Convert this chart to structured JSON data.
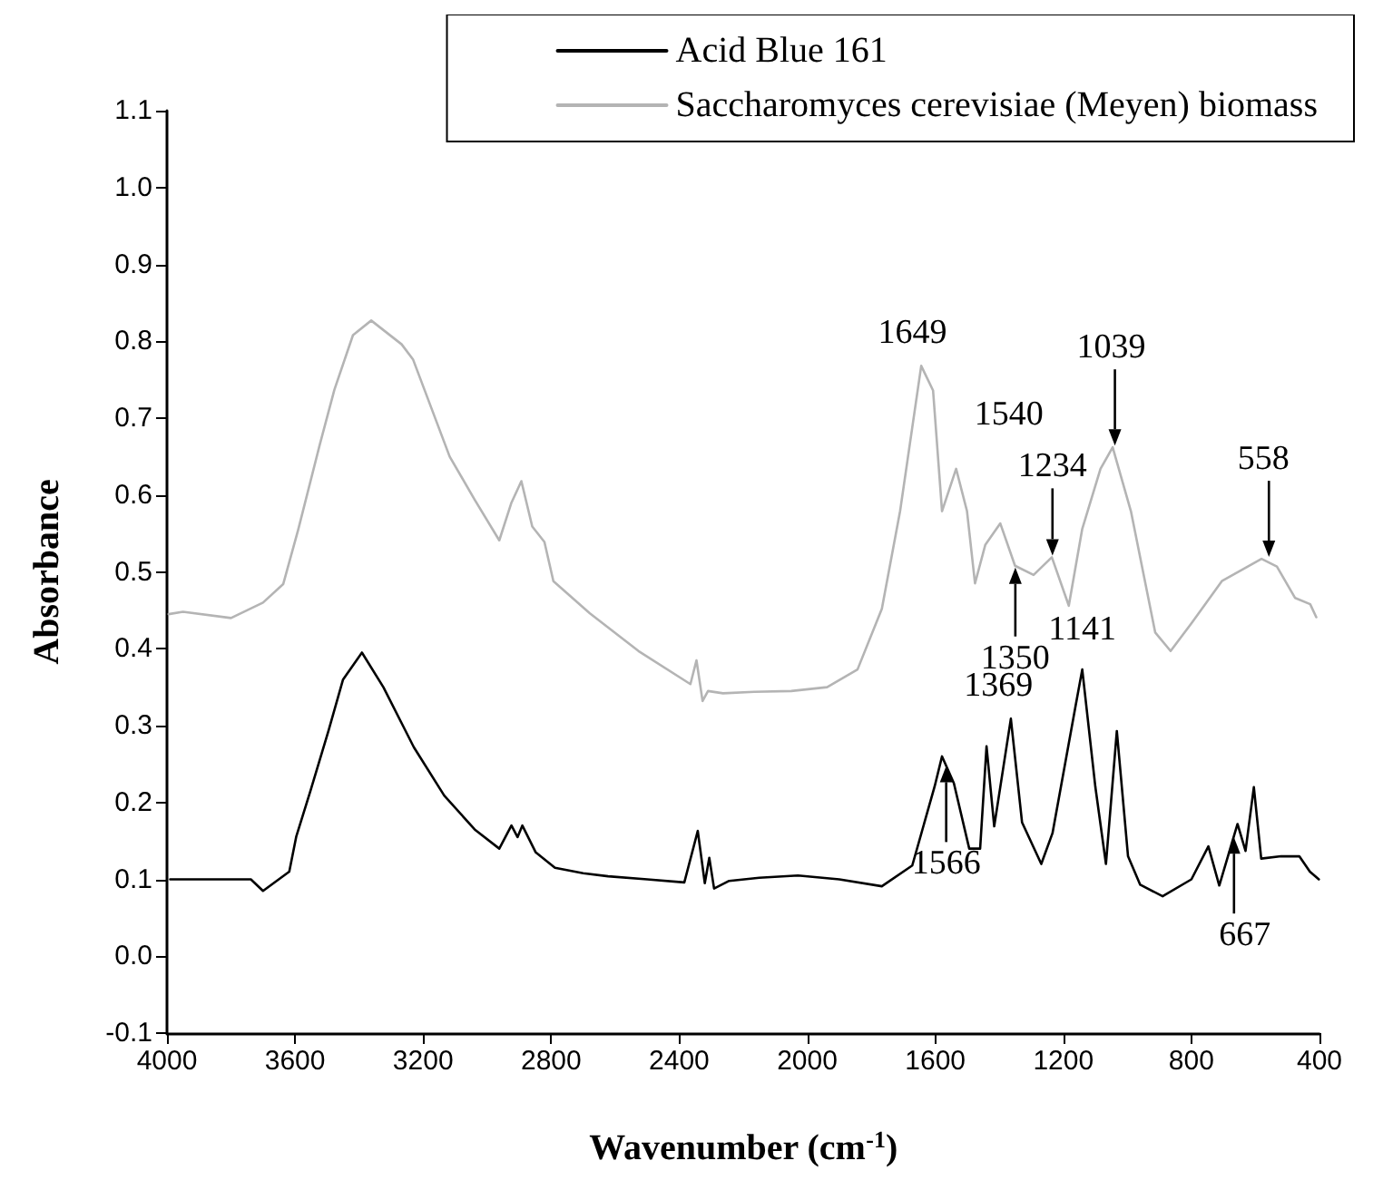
{
  "chart_data": {
    "type": "line",
    "xlabel": "Wavenumber (cm$^{-1}$)",
    "ylabel": "Absorbance",
    "xlim": [
      4000,
      400
    ],
    "xticks": [
      4000,
      3600,
      3200,
      2800,
      2400,
      2000,
      1600,
      1200,
      800,
      400
    ],
    "ylim": [
      -0.1,
      1.1
    ],
    "yticks": [
      -0.1,
      {
        "value": 0,
        "label": "0.0"
      },
      0.1,
      0.2,
      0.3,
      0.4,
      0.5,
      0.6,
      0.7,
      0.8,
      0.9,
      {
        "value": 1,
        "label": "1.0"
      },
      1.1
    ],
    "grid": false,
    "legend": "top right",
    "marker": "none",
    "line_style": "solid",
    "series": [
      {
        "name": "Acid Blue 161",
        "color": "#000000",
        "x": [
          3990,
          3950,
          3850,
          3738,
          3700,
          3618,
          3596,
          3552,
          3495,
          3450,
          3391,
          3324,
          3229,
          3134,
          3039,
          2962,
          2924,
          2905,
          2890,
          2848,
          2788,
          2700,
          2622,
          2500,
          2384,
          2342,
          2320,
          2306,
          2291,
          2244,
          2150,
          2029,
          1900,
          1767,
          1672,
          1602,
          1579,
          1542,
          1494,
          1460,
          1440,
          1416,
          1364,
          1329,
          1269,
          1234,
          1163,
          1141,
          1100,
          1067,
          1033,
          998,
          960,
          890,
          800,
          747,
          713,
          656,
          631,
          605,
          582,
          520,
          463,
          430,
          402
        ],
        "values": [
          0.1,
          0.1,
          0.1,
          0.1,
          0.085,
          0.11,
          0.156,
          0.215,
          0.294,
          0.36,
          0.395,
          0.35,
          0.272,
          0.209,
          0.165,
          0.14,
          0.17,
          0.155,
          0.17,
          0.135,
          0.115,
          0.108,
          0.104,
          0.1,
          0.096,
          0.163,
          0.095,
          0.128,
          0.088,
          0.098,
          0.102,
          0.105,
          0.1,
          0.091,
          0.118,
          0.221,
          0.26,
          0.225,
          0.14,
          0.14,
          0.273,
          0.169,
          0.309,
          0.174,
          0.12,
          0.16,
          0.323,
          0.373,
          0.22,
          0.12,
          0.293,
          0.13,
          0.093,
          0.078,
          0.1,
          0.143,
          0.092,
          0.172,
          0.137,
          0.22,
          0.127,
          0.13,
          0.13,
          0.11,
          0.1
        ]
      },
      {
        "name": "Saccharomyces cerevisiae (Meyen) biomass",
        "color": "#b4b4b4",
        "x": [
          3995,
          3950,
          3800,
          3700,
          3637,
          3590,
          3523,
          3477,
          3419,
          3362,
          3267,
          3231,
          3117,
          3039,
          2962,
          2924,
          2893,
          2859,
          2821,
          2793,
          2679,
          2527,
          2365,
          2346,
          2327,
          2310,
          2263,
          2166,
          2050,
          1938,
          1843,
          1767,
          1710,
          1644,
          1607,
          1579,
          1535,
          1501,
          1476,
          1444,
          1397,
          1351,
          1293,
          1236,
          1183,
          1141,
          1084,
          1046,
          989,
          913,
          865,
          800,
          705,
          581,
          533,
          476,
          429,
          410
        ],
        "values": [
          0.445,
          0.448,
          0.44,
          0.46,
          0.484,
          0.555,
          0.665,
          0.737,
          0.808,
          0.827,
          0.796,
          0.776,
          0.65,
          0.594,
          0.541,
          0.59,
          0.618,
          0.559,
          0.539,
          0.488,
          0.446,
          0.397,
          0.354,
          0.385,
          0.332,
          0.345,
          0.342,
          0.344,
          0.345,
          0.35,
          0.373,
          0.452,
          0.579,
          0.768,
          0.736,
          0.579,
          0.634,
          0.579,
          0.485,
          0.535,
          0.563,
          0.508,
          0.496,
          0.519,
          0.456,
          0.556,
          0.634,
          0.662,
          0.579,
          0.421,
          0.397,
          0.433,
          0.488,
          0.517,
          0.507,
          0.466,
          0.458,
          0.441
        ]
      }
    ],
    "annotations": [
      {
        "text": "1649",
        "x": 1649,
        "y": 0.768
      },
      {
        "text": "1540",
        "x": 1540,
        "y": 0.634
      },
      {
        "text": "1234",
        "x": 1234,
        "y": 0.519
      },
      {
        "text": "1039",
        "x": 1039,
        "y": 0.662
      },
      {
        "text": "558",
        "x": 558,
        "y": 0.517
      },
      {
        "text": "1350",
        "x": 1350,
        "y": 0.508
      },
      {
        "text": "1566",
        "x": 1566,
        "y": 0.25
      },
      {
        "text": "1369",
        "x": 1369,
        "y": 0.3
      },
      {
        "text": "1141",
        "x": 1141,
        "y": 0.373
      },
      {
        "text": "667",
        "x": 667,
        "y": 0.157
      }
    ]
  }
}
